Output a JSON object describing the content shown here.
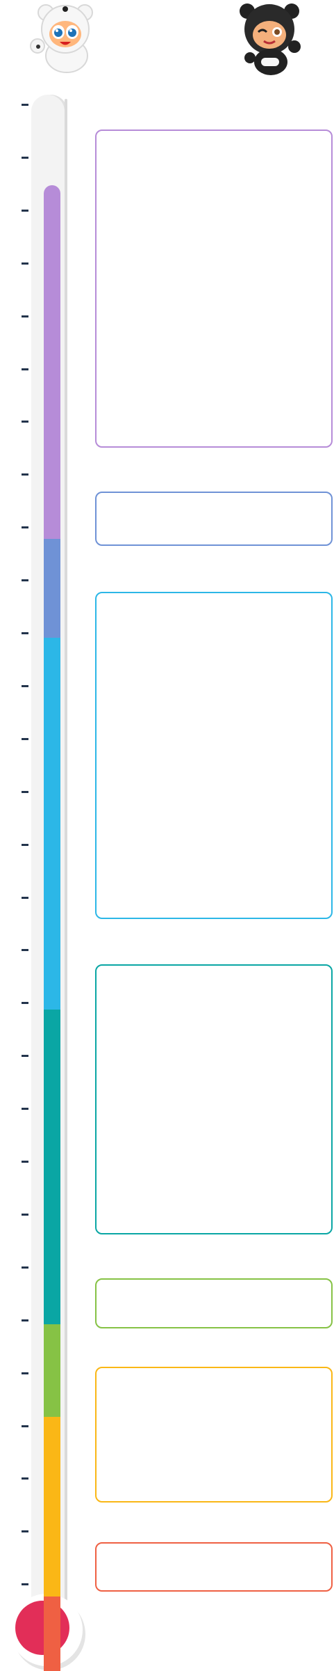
{
  "mascots": [
    {
      "name": "white-bear-mascot",
      "icon": "white-bear-mascot-icon"
    },
    {
      "name": "black-bear-mascot",
      "icon": "black-bear-mascot-icon"
    }
  ],
  "thermometer": {
    "segment_colors": [
      "#b68cd8",
      "#6f92d6",
      "#2cb7e7",
      "#0aa6a4",
      "#86c245",
      "#fab716",
      "#ef6043"
    ],
    "bulb_color": "#e22e58",
    "tick_count": 29
  },
  "boxes": [
    {
      "border_color": "#b68cd8"
    },
    {
      "border_color": "#6f92d6"
    },
    {
      "border_color": "#2cb7e7"
    },
    {
      "border_color": "#0aa6a4"
    },
    {
      "border_color": "#86c245"
    },
    {
      "border_color": "#fab716"
    },
    {
      "border_color": "#ef6043"
    }
  ]
}
